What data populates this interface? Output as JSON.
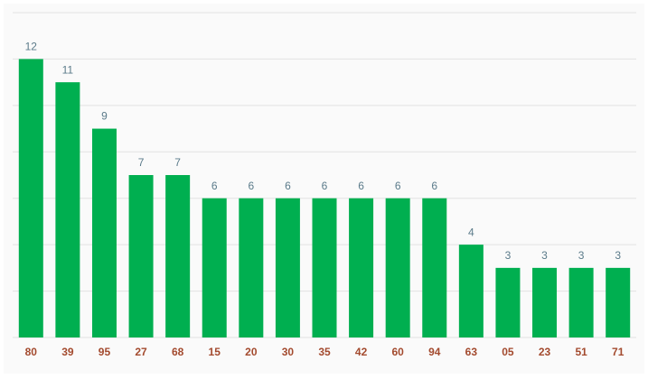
{
  "chart_data": {
    "type": "bar",
    "categories": [
      "80",
      "39",
      "95",
      "27",
      "68",
      "15",
      "20",
      "30",
      "35",
      "42",
      "60",
      "94",
      "63",
      "05",
      "23",
      "51",
      "71"
    ],
    "values": [
      12,
      11,
      9,
      7,
      7,
      6,
      6,
      6,
      6,
      6,
      6,
      6,
      4,
      3,
      3,
      3,
      3
    ],
    "color": "#00af50",
    "ylim": [
      0,
      14
    ],
    "yticks": [
      0,
      2,
      4,
      6,
      8,
      10,
      12,
      14
    ],
    "grid": true
  }
}
